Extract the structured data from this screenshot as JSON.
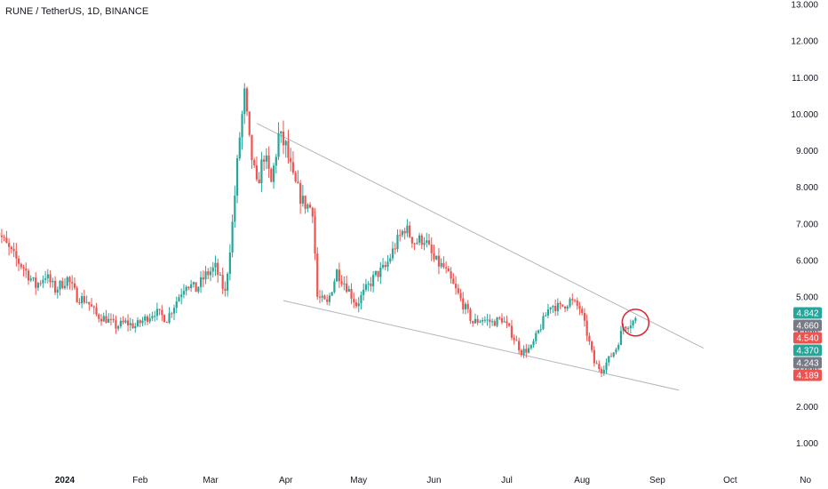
{
  "header": {
    "symbol_line": "RUNE / TetherUS, 1D, BINANCE"
  },
  "colors": {
    "up": "#26a69a",
    "down": "#ef5350",
    "trendline": "#b2b5be",
    "circle": "#e0202e",
    "axis_bg": "#ffffff"
  },
  "chart_data": {
    "type": "candlestick",
    "title": "RUNE / TetherUS, 1D, BINANCE",
    "ylim": [
      0.6,
      13.0
    ],
    "y_ticks": [
      "13.000",
      "12.000",
      "11.000",
      "10.000",
      "9.000",
      "8.000",
      "7.000",
      "6.000",
      "5.000",
      "4.000",
      "3.000",
      "2.000",
      "1.000"
    ],
    "x_ticks": [
      {
        "label": "2024",
        "bold": true,
        "date": "2024-01-01"
      },
      {
        "label": "Feb",
        "bold": false,
        "date": "2024-02-01"
      },
      {
        "label": "Mar",
        "bold": false,
        "date": "2024-03-01"
      },
      {
        "label": "Apr",
        "bold": false,
        "date": "2024-04-01"
      },
      {
        "label": "May",
        "bold": false,
        "date": "2024-05-01"
      },
      {
        "label": "Jun",
        "bold": false,
        "date": "2024-06-01"
      },
      {
        "label": "Jul",
        "bold": false,
        "date": "2024-07-01"
      },
      {
        "label": "Aug",
        "bold": false,
        "date": "2024-08-01"
      },
      {
        "label": "Sep",
        "bold": false,
        "date": "2024-09-01"
      },
      {
        "label": "Oct",
        "bold": false,
        "date": "2024-10-01"
      },
      {
        "label": "No",
        "bold": false,
        "date": "2024-11-01"
      }
    ],
    "close_path": [
      [
        "2023-12-03",
        7.0
      ],
      [
        "2023-12-07",
        6.5
      ],
      [
        "2023-12-11",
        6.1
      ],
      [
        "2023-12-15",
        5.8
      ],
      [
        "2023-12-20",
        5.3
      ],
      [
        "2023-12-24",
        5.6
      ],
      [
        "2023-12-28",
        5.2
      ],
      [
        "2024-01-02",
        5.5
      ],
      [
        "2024-01-06",
        5.0
      ],
      [
        "2024-01-10",
        4.9
      ],
      [
        "2024-01-14",
        4.5
      ],
      [
        "2024-01-18",
        4.4
      ],
      [
        "2024-01-22",
        4.2
      ],
      [
        "2024-01-26",
        4.3
      ],
      [
        "2024-01-30",
        4.2
      ],
      [
        "2024-02-03",
        4.4
      ],
      [
        "2024-02-07",
        4.6
      ],
      [
        "2024-02-12",
        4.4
      ],
      [
        "2024-02-16",
        4.9
      ],
      [
        "2024-02-20",
        5.4
      ],
      [
        "2024-02-24",
        5.2
      ],
      [
        "2024-02-28",
        5.6
      ],
      [
        "2024-03-03",
        5.8
      ],
      [
        "2024-03-07",
        5.1
      ],
      [
        "2024-03-10",
        7.0
      ],
      [
        "2024-03-13",
        9.4
      ],
      [
        "2024-03-15",
        10.5
      ],
      [
        "2024-03-17",
        9.2
      ],
      [
        "2024-03-20",
        8.0
      ],
      [
        "2024-03-23",
        8.9
      ],
      [
        "2024-03-26",
        8.1
      ],
      [
        "2024-03-29",
        9.4
      ],
      [
        "2024-04-01",
        9.1
      ],
      [
        "2024-04-04",
        8.2
      ],
      [
        "2024-04-08",
        7.6
      ],
      [
        "2024-04-12",
        7.4
      ],
      [
        "2024-04-14",
        5.0
      ],
      [
        "2024-04-18",
        4.8
      ],
      [
        "2024-04-22",
        5.7
      ],
      [
        "2024-04-26",
        5.3
      ],
      [
        "2024-04-30",
        4.8
      ],
      [
        "2024-05-04",
        5.2
      ],
      [
        "2024-05-08",
        5.6
      ],
      [
        "2024-05-12",
        5.8
      ],
      [
        "2024-05-16",
        6.4
      ],
      [
        "2024-05-20",
        6.9
      ],
      [
        "2024-05-24",
        6.5
      ],
      [
        "2024-05-28",
        6.6
      ],
      [
        "2024-06-01",
        6.0
      ],
      [
        "2024-06-05",
        5.8
      ],
      [
        "2024-06-09",
        5.3
      ],
      [
        "2024-06-13",
        4.8
      ],
      [
        "2024-06-17",
        4.3
      ],
      [
        "2024-06-21",
        4.4
      ],
      [
        "2024-06-25",
        4.3
      ],
      [
        "2024-06-29",
        4.4
      ],
      [
        "2024-07-03",
        4.0
      ],
      [
        "2024-07-07",
        3.5
      ],
      [
        "2024-07-11",
        3.6
      ],
      [
        "2024-07-15",
        4.2
      ],
      [
        "2024-07-19",
        4.8
      ],
      [
        "2024-07-23",
        4.7
      ],
      [
        "2024-07-27",
        4.9
      ],
      [
        "2024-07-31",
        4.7
      ],
      [
        "2024-08-03",
        4.0
      ],
      [
        "2024-08-06",
        3.2
      ],
      [
        "2024-08-09",
        3.0
      ],
      [
        "2024-08-12",
        3.3
      ],
      [
        "2024-08-15",
        3.6
      ],
      [
        "2024-08-18",
        4.2
      ],
      [
        "2024-08-21",
        4.3
      ],
      [
        "2024-08-24",
        4.4
      ]
    ],
    "trendlines": [
      {
        "name": "upper",
        "from": [
          "2024-03-20",
          9.75
        ],
        "to": [
          "2024-09-20",
          3.6
        ]
      },
      {
        "name": "lower",
        "from": [
          "2024-03-31",
          4.9
        ],
        "to": [
          "2024-09-10",
          2.45
        ]
      }
    ],
    "highlight_circle": {
      "date": "2024-08-23",
      "price": 4.3
    },
    "price_labels": [
      {
        "text": "4.842",
        "value": 4.842,
        "color": "#26a69a"
      },
      {
        "text": "4.660",
        "value": 4.66,
        "color": "#787b86"
      },
      {
        "text": "4.540",
        "value": 4.54,
        "color": "#ef5350"
      },
      {
        "text": "4.370",
        "value": 4.37,
        "color": "#26a69a"
      },
      {
        "text": "4.243",
        "value": 4.243,
        "color": "#787b86"
      },
      {
        "text": "4.189",
        "value": 4.189,
        "color": "#ef5350"
      }
    ]
  }
}
